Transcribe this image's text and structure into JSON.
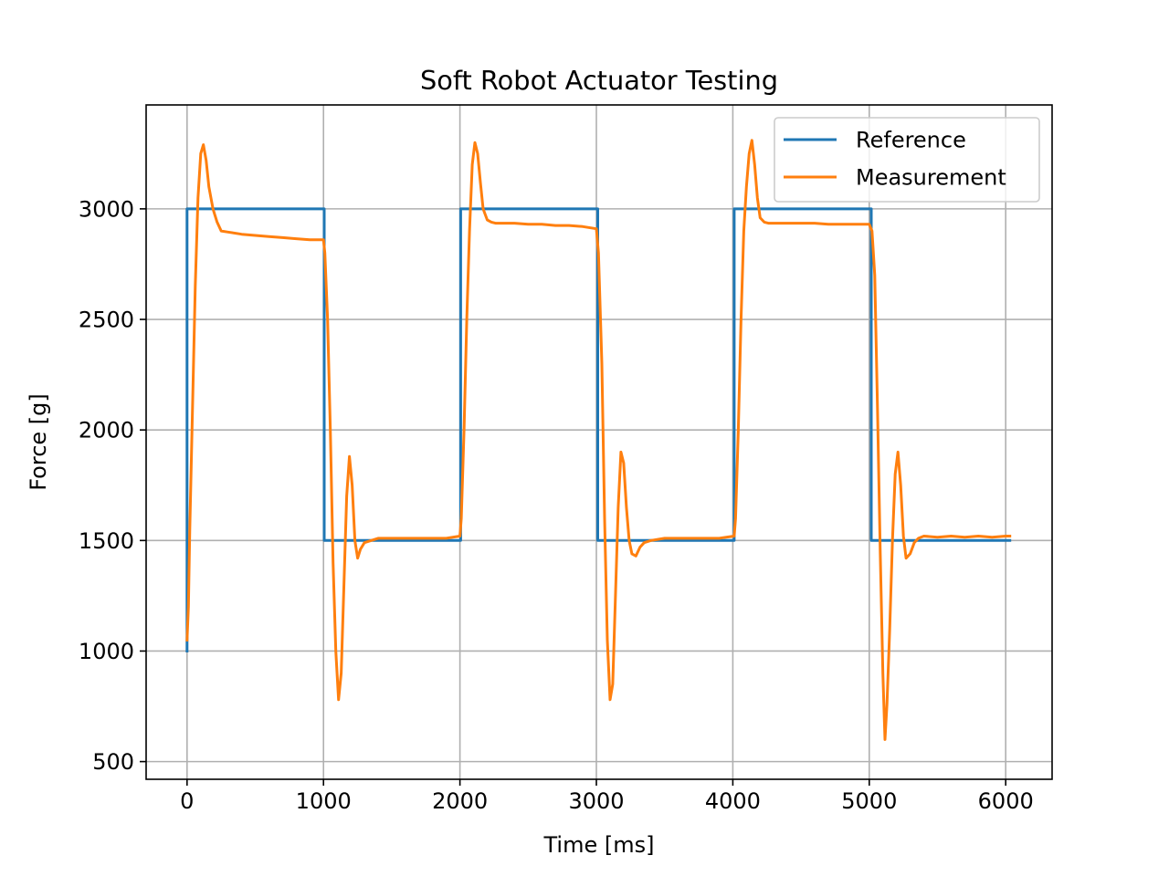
{
  "chart_data": {
    "type": "line",
    "title": "Soft Robot Actuator Testing",
    "xlabel": "Time [ms]",
    "ylabel": "Force [g]",
    "xlim": [
      -300,
      6340
    ],
    "ylim": [
      420,
      3470
    ],
    "xticks": [
      0,
      1000,
      2000,
      3000,
      4000,
      5000,
      6000
    ],
    "yticks": [
      500,
      1000,
      1500,
      2000,
      2500,
      3000
    ],
    "xtick_labels": [
      "0",
      "1000",
      "2000",
      "3000",
      "4000",
      "5000",
      "6000"
    ],
    "ytick_labels": [
      "500",
      "1000",
      "1500",
      "2000",
      "2500",
      "3000"
    ],
    "grid": true,
    "legend_position": "upper right",
    "series": [
      {
        "name": "Reference",
        "color": "#1f77b4",
        "x": [
          0,
          0,
          1005,
          1005,
          2005,
          2005,
          3010,
          3010,
          4010,
          4010,
          5015,
          5015,
          6030
        ],
        "y": [
          1000,
          3000,
          3000,
          1500,
          1500,
          3000,
          3000,
          1500,
          1500,
          3000,
          3000,
          1500,
          1500
        ]
      },
      {
        "name": "Measurement",
        "color": "#ff7f0e",
        "x": [
          0,
          10,
          20,
          40,
          60,
          80,
          100,
          120,
          140,
          160,
          190,
          220,
          250,
          300,
          400,
          500,
          600,
          700,
          800,
          900,
          1000,
          1010,
          1030,
          1050,
          1070,
          1090,
          1110,
          1130,
          1150,
          1170,
          1190,
          1210,
          1230,
          1250,
          1270,
          1300,
          1350,
          1400,
          1500,
          1600,
          1700,
          1800,
          1900,
          2000,
          2010,
          2030,
          2050,
          2070,
          2090,
          2110,
          2130,
          2150,
          2170,
          2200,
          2230,
          2260,
          2300,
          2400,
          2500,
          2600,
          2700,
          2800,
          2900,
          3000,
          3015,
          3040,
          3060,
          3080,
          3100,
          3120,
          3140,
          3160,
          3180,
          3200,
          3220,
          3240,
          3260,
          3290,
          3320,
          3350,
          3400,
          3500,
          3600,
          3700,
          3800,
          3900,
          4010,
          4020,
          4040,
          4060,
          4080,
          4100,
          4120,
          4140,
          4160,
          4180,
          4200,
          4230,
          4260,
          4300,
          4400,
          4500,
          4600,
          4700,
          4800,
          4900,
          5000,
          5020,
          5040,
          5060,
          5080,
          5100,
          5115,
          5130,
          5150,
          5170,
          5190,
          5210,
          5230,
          5250,
          5270,
          5300,
          5330,
          5360,
          5400,
          5500,
          5600,
          5700,
          5800,
          5900,
          6000,
          6030
        ],
        "y": [
          1050,
          1200,
          1550,
          2100,
          2650,
          3050,
          3250,
          3290,
          3220,
          3100,
          3000,
          2940,
          2900,
          2895,
          2885,
          2880,
          2875,
          2870,
          2865,
          2860,
          2860,
          2800,
          2500,
          2000,
          1400,
          1000,
          780,
          900,
          1300,
          1700,
          1880,
          1750,
          1500,
          1420,
          1460,
          1490,
          1500,
          1510,
          1510,
          1510,
          1510,
          1510,
          1510,
          1520,
          1600,
          2000,
          2500,
          2900,
          3200,
          3300,
          3250,
          3120,
          3000,
          2950,
          2940,
          2935,
          2935,
          2935,
          2930,
          2930,
          2925,
          2925,
          2920,
          2910,
          2800,
          2300,
          1600,
          1050,
          780,
          850,
          1250,
          1650,
          1900,
          1850,
          1650,
          1500,
          1440,
          1430,
          1470,
          1490,
          1500,
          1510,
          1510,
          1510,
          1510,
          1510,
          1520,
          1600,
          2000,
          2500,
          2900,
          3100,
          3250,
          3310,
          3200,
          3050,
          2960,
          2940,
          2935,
          2935,
          2935,
          2935,
          2935,
          2930,
          2930,
          2930,
          2930,
          2900,
          2700,
          2100,
          1450,
          900,
          600,
          760,
          1100,
          1500,
          1800,
          1900,
          1750,
          1520,
          1420,
          1440,
          1490,
          1510,
          1520,
          1515,
          1520,
          1515,
          1520,
          1515,
          1520,
          1520
        ]
      }
    ]
  }
}
